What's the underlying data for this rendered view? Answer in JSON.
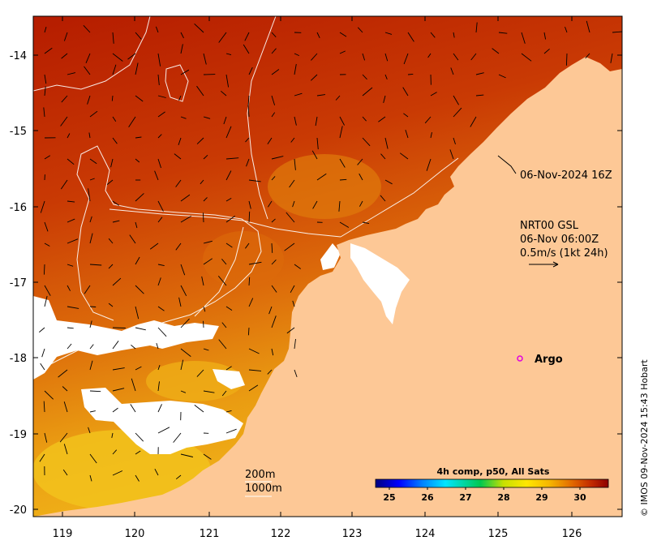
{
  "colors": {
    "land": "#fdc896",
    "sea_warm": "#b31a00",
    "sea_mid": "#d85a0a",
    "sea_cool": "#eb9a14",
    "sea_cooler": "#f5c81e",
    "cloud": "#ffffff",
    "frame": "#000000",
    "argo": "#e000e0"
  },
  "x_axis": {
    "ticks": [
      "119",
      "120",
      "121",
      "122",
      "123",
      "124",
      "125",
      "126"
    ]
  },
  "y_axis": {
    "ticks": [
      "-14",
      "-15",
      "-16",
      "-17",
      "-18",
      "-19",
      "-20"
    ]
  },
  "annotations": {
    "track_time": "06-Nov-2024 16Z",
    "current_model": "NRT00 GSL",
    "current_time": "06-Nov 06:00Z",
    "current_scale": "0.5m/s (1kt 24h)",
    "argo_label": "Argo",
    "depth_200": "200m",
    "depth_1000": "1000m"
  },
  "colorbar": {
    "title": "4h comp, p50, All Sats",
    "ticks": [
      "25",
      "26",
      "27",
      "28",
      "29",
      "30"
    ],
    "range": [
      24.6,
      30.7
    ],
    "colors": [
      "#00007f",
      "#0000ff",
      "#0080ff",
      "#00e5ff",
      "#00c850",
      "#40d010",
      "#c8e000",
      "#ffe600",
      "#f5b400",
      "#e68200",
      "#d24b00",
      "#b41400",
      "#8c0000"
    ]
  },
  "credit": "© IMOS 09-Nov-2024 15:43 Hobart"
}
